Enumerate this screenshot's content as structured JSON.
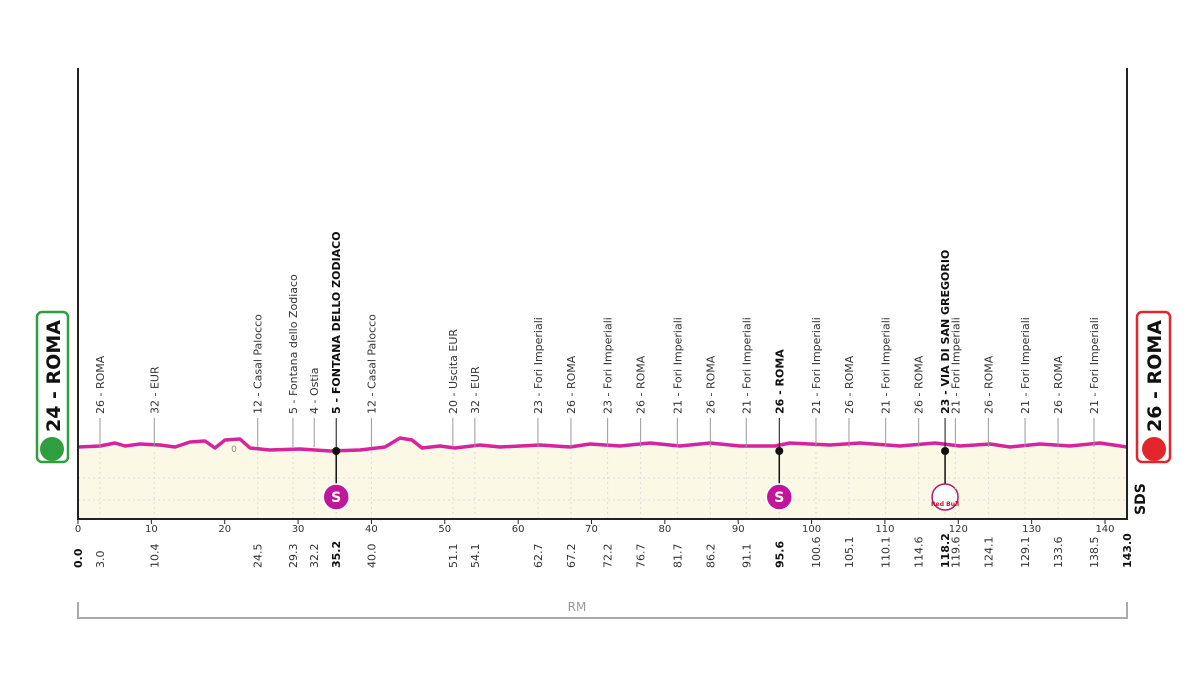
{
  "start": {
    "label": "24 - ROMA"
  },
  "finish": {
    "label": "26 - ROMA"
  },
  "baseline_label": "0",
  "sprint_icon": "S",
  "sponsor_icon": "Red Bull",
  "side_label": "SDS",
  "region_label": "RM",
  "axis": {
    "xlim": [
      0,
      143
    ],
    "xticks": [
      0,
      10,
      20,
      30,
      40,
      50,
      60,
      70,
      80,
      90,
      100,
      110,
      120,
      130,
      140
    ]
  },
  "ends": [
    {
      "value": 0,
      "label": "0.0"
    },
    {
      "value": 143,
      "label": "143.0"
    }
  ],
  "waypoints": [
    {
      "km": {
        "value": 3,
        "label": "3.0"
      },
      "label": "26 - ROMA"
    },
    {
      "km": {
        "value": 10.4,
        "label": "10.4"
      },
      "label": "32 - EUR"
    },
    {
      "km": {
        "value": 24.5,
        "label": "24.5"
      },
      "label": "12 - Casal Palocco"
    },
    {
      "km": {
        "value": 29.3,
        "label": "29.3"
      },
      "label": "5 - Fontana dello Zodiaco"
    },
    {
      "km": {
        "value": 32.2,
        "label": "32.2"
      },
      "label": "4 - Ostia"
    },
    {
      "km": {
        "value": 35.2,
        "label": "35.2"
      },
      "label": "5 - FONTANA DELLO ZODIACO",
      "bold": true,
      "marker": "sprint"
    },
    {
      "km": {
        "value": 40,
        "label": "40.0"
      },
      "label": "12 - Casal Palocco"
    },
    {
      "km": {
        "value": 51.1,
        "label": "51.1"
      },
      "label": "20 - Uscita EUR"
    },
    {
      "km": {
        "value": 54.1,
        "label": "54.1"
      },
      "label": "32 - EUR"
    },
    {
      "km": {
        "value": 62.7,
        "label": "62.7"
      },
      "label": "23 - Fori Imperiali"
    },
    {
      "km": {
        "value": 67.2,
        "label": "67.2"
      },
      "label": "26 - ROMA"
    },
    {
      "km": {
        "value": 72.2,
        "label": "72.2"
      },
      "label": "23 - Fori Imperiali"
    },
    {
      "km": {
        "value": 76.7,
        "label": "76.7"
      },
      "label": "26 - ROMA"
    },
    {
      "km": {
        "value": 81.7,
        "label": "81.7"
      },
      "label": "21 - Fori Imperiali"
    },
    {
      "km": {
        "value": 86.2,
        "label": "86.2"
      },
      "label": "26 - ROMA"
    },
    {
      "km": {
        "value": 91.1,
        "label": "91.1"
      },
      "label": "21 - Fori Imperiali"
    },
    {
      "km": {
        "value": 95.6,
        "label": "95.6"
      },
      "label": "26 - ROMA",
      "bold": true,
      "marker": "sprint"
    },
    {
      "km": {
        "value": 100.6,
        "label": "100.6"
      },
      "label": "21 - Fori Imperiali"
    },
    {
      "km": {
        "value": 105.1,
        "label": "105.1"
      },
      "label": "26 - ROMA"
    },
    {
      "km": {
        "value": 110.1,
        "label": "110.1"
      },
      "label": "21 - Fori Imperiali"
    },
    {
      "km": {
        "value": 114.6,
        "label": "114.6"
      },
      "label": "26 - ROMA"
    },
    {
      "km": {
        "value": 118.2,
        "label": "118.2"
      },
      "label": "23 - VIA DI SAN GREGORIO",
      "bold": true,
      "marker": "sponsor"
    },
    {
      "km": {
        "value": 119.6,
        "label": "119.6"
      },
      "label": "21 - Fori Imperiali"
    },
    {
      "km": {
        "value": 124.1,
        "label": "124.1"
      },
      "label": "26 - ROMA"
    },
    {
      "km": {
        "value": 129.1,
        "label": "129.1"
      },
      "label": "21 - Fori Imperiali"
    },
    {
      "km": {
        "value": 133.6,
        "label": "133.6"
      },
      "label": "26 - ROMA"
    },
    {
      "km": {
        "value": 138.5,
        "label": "138.5"
      },
      "label": "21 - Fori Imperiali"
    }
  ]
}
